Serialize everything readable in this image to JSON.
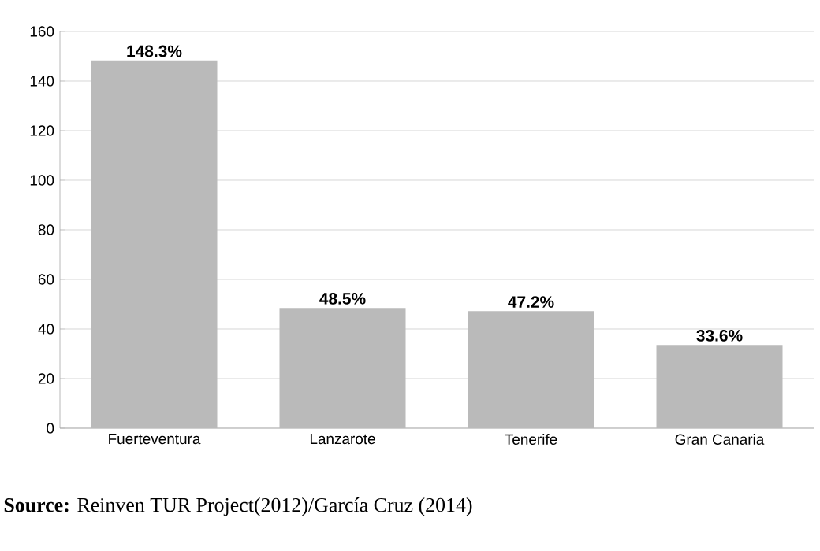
{
  "chart_data": {
    "type": "bar",
    "categories": [
      "Fuerteventura",
      "Lanzarote",
      "Tenerife",
      "Gran Canaria"
    ],
    "values": [
      148.3,
      48.5,
      47.2,
      33.6
    ],
    "value_labels": [
      "148.3%",
      "48.5%",
      "47.2%",
      "33.6%"
    ],
    "color": "#bababa",
    "ylim": [
      0,
      160
    ],
    "yticks": [
      0,
      20,
      40,
      60,
      80,
      100,
      120,
      140,
      160
    ],
    "grid": "y",
    "annotations": [
      "**Source:** Reinven TUR Project(2012)/García Cruz (2014)"
    ]
  }
}
